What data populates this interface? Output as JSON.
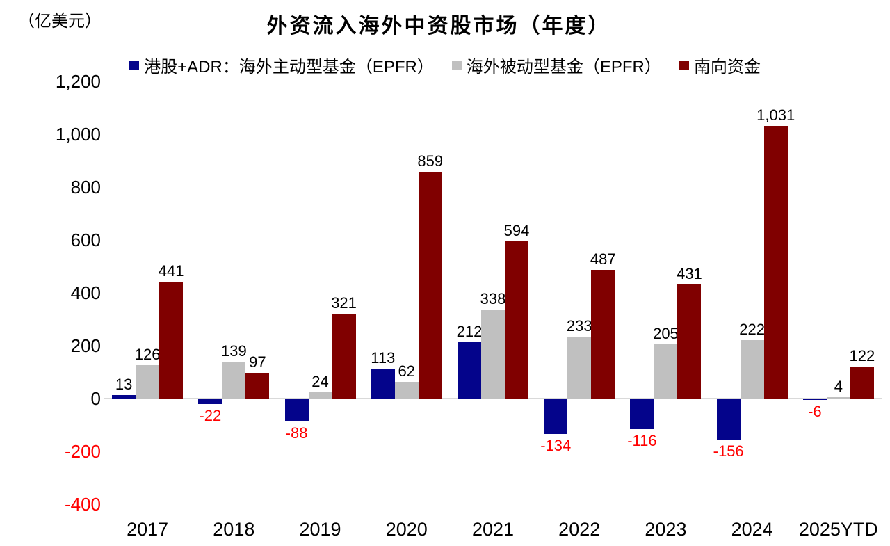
{
  "chart_data": {
    "type": "bar",
    "title": "外资流入海外中资股市场（年度）",
    "ylabel": "（亿美元）",
    "categories": [
      "2017",
      "2018",
      "2019",
      "2020",
      "2021",
      "2022",
      "2023",
      "2024",
      "2025YTD"
    ],
    "series": [
      {
        "key": "active-epfr",
        "name": "港股+ADR：海外主动型基金（EPFR）",
        "color": "#04048B",
        "values": [
          13,
          -22,
          -88,
          113,
          212,
          -134,
          -116,
          -156,
          -6
        ]
      },
      {
        "key": "passive-epfr",
        "name": "海外被动型基金（EPFR）",
        "color": "#C0C0C0",
        "values": [
          126,
          139,
          24,
          62,
          338,
          233,
          205,
          222,
          4
        ]
      },
      {
        "key": "southbound",
        "name": "南向资金",
        "color": "#800000",
        "values": [
          441,
          97,
          321,
          859,
          594,
          487,
          431,
          1031,
          122
        ]
      }
    ],
    "ylim": [
      -400,
      1200
    ],
    "yticks": [
      {
        "value": 1200,
        "label": "1,200"
      },
      {
        "value": 1000,
        "label": "1,000"
      },
      {
        "value": 800,
        "label": "800"
      },
      {
        "value": 600,
        "label": "600"
      },
      {
        "value": 400,
        "label": "400"
      },
      {
        "value": 200,
        "label": "200"
      },
      {
        "value": 0,
        "label": "0"
      },
      {
        "value": -200,
        "label": "-200"
      },
      {
        "value": -400,
        "label": "-400"
      }
    ],
    "grid": false,
    "legend_position": "top",
    "positive_label_color": "#000000",
    "negative_label_color": "#FF0000",
    "negative_tick_color": "#FF0000",
    "zero_line_color": "#D9D9D9",
    "background_color": "#FFFFFF"
  }
}
